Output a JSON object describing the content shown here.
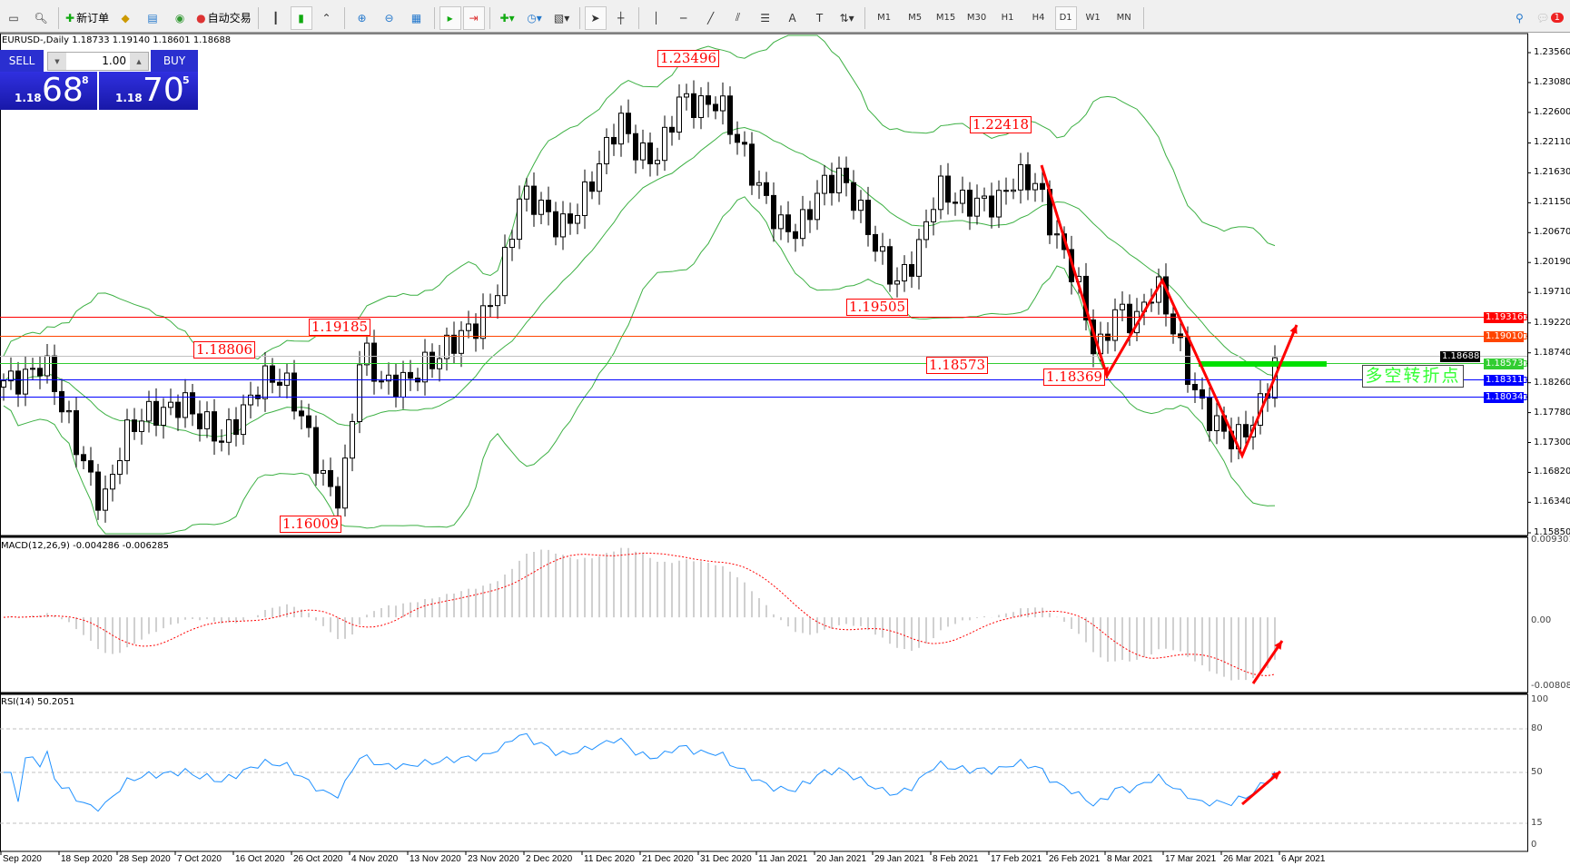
{
  "toolbar": {
    "new_order_label": "新订单",
    "auto_trading_label": "自动交易",
    "timeframes": [
      "M1",
      "M5",
      "M15",
      "M30",
      "H1",
      "H4",
      "D1",
      "W1",
      "MN"
    ],
    "active_timeframe": "D1",
    "notification_count": "1"
  },
  "chart": {
    "symbol_line": "EURUSD-,Daily  1.18733 1.19140 1.18601 1.18688",
    "trade_panel": {
      "sell_label": "SELL",
      "buy_label": "BUY",
      "lot": "1.00",
      "sell_prefix": "1.18",
      "sell_big": "68",
      "sell_sup": "8",
      "buy_prefix": "1.18",
      "buy_big": "70",
      "buy_sup": "5"
    },
    "price_axis": [
      "1.23560",
      "1.23080",
      "1.22600",
      "1.22110",
      "1.21630",
      "1.21150",
      "1.20670",
      "1.20190",
      "1.19710",
      "1.19220",
      "1.18740",
      "1.18260",
      "1.17780",
      "1.17300",
      "1.16820",
      "1.16340",
      "1.15850"
    ],
    "price_range": [
      1.1585,
      1.2356
    ],
    "level_lines": [
      {
        "price": "1.19316",
        "color": "#ff0000"
      },
      {
        "price": "1.19010",
        "color": "#ff4500"
      },
      {
        "price": "1.18688",
        "color": "#000000",
        "line_color": "#c0c0c0"
      },
      {
        "price": "1.18573",
        "color": "#32cd32"
      },
      {
        "price": "1.18311",
        "color": "#0000ff"
      },
      {
        "price": "1.18034",
        "color": "#0000ff"
      }
    ],
    "annotations": [
      "1.23496",
      "1.22418",
      "1.19505",
      "1.19185",
      "1.18806",
      "1.18573",
      "1.18369",
      "1.16009"
    ],
    "pivot_label": "多空转折点",
    "approx_close_path": [
      1.1829,
      1.1845,
      1.1862,
      1.177,
      1.17,
      1.164,
      1.1733,
      1.176,
      1.1781,
      1.181,
      1.176,
      1.172,
      1.178,
      1.1846,
      1.183,
      1.176,
      1.168,
      1.165,
      1.1878,
      1.1813,
      1.183,
      1.186,
      1.1865,
      1.189,
      1.193,
      1.2,
      1.212,
      1.21,
      1.208,
      1.212,
      1.2168,
      1.224,
      1.22,
      1.22,
      1.227,
      1.226,
      1.229,
      1.222,
      1.213,
      1.207,
      1.208,
      1.214,
      1.215,
      1.2103,
      1.205,
      1.1991,
      1.202,
      1.2135,
      1.213,
      1.212,
      1.21,
      1.2152,
      1.216,
      1.206,
      1.198,
      1.1862,
      1.1958,
      1.1926,
      1.1974,
      1.19,
      1.182,
      1.176,
      1.1717,
      1.1765,
      1.187
    ],
    "candle_up_color": "#ffffff",
    "candle_down_color": "#000000",
    "bands_color": "#3cb043",
    "arrow_color": "#ff0000",
    "dates": [
      "Sep 2020",
      "18 Sep 2020",
      "28 Sep 2020",
      "7 Oct 2020",
      "16 Oct 2020",
      "26 Oct 2020",
      "4 Nov 2020",
      "13 Nov 2020",
      "23 Nov 2020",
      "2 Dec 2020",
      "11 Dec 2020",
      "21 Dec 2020",
      "31 Dec 2020",
      "11 Jan 2021",
      "20 Jan 2021",
      "29 Jan 2021",
      "8 Feb 2021",
      "17 Feb 2021",
      "26 Feb 2021",
      "8 Mar 2021",
      "17 Mar 2021",
      "26 Mar 2021",
      "6 Apr 2021"
    ]
  },
  "macd": {
    "title": "MACD(12,26,9) -0.004286 -0.006285",
    "axis": [
      "0.009301",
      "0.00",
      "-0.008082"
    ],
    "range": [
      -0.008082,
      0.009301
    ],
    "signal_color": "#ff0000",
    "histogram_color": "#c0c0c0"
  },
  "rsi": {
    "title": "RSI(14) 50.2051",
    "axis": [
      "100",
      "80",
      "50",
      "15",
      "0"
    ],
    "line_color": "#1e90ff"
  }
}
